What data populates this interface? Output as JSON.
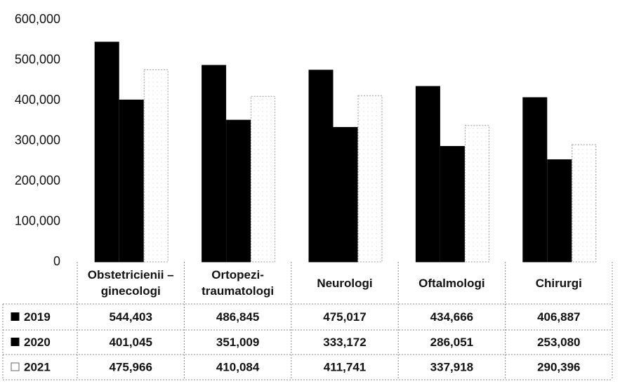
{
  "chart_data": {
    "type": "bar",
    "categories": [
      "Obstetricienii – ginecologi",
      "Ortopezi-traumatologi",
      "Neurologi",
      "Oftalmologi",
      "Chirurgi"
    ],
    "series": [
      {
        "name": "2019",
        "color": "#000000",
        "values": [
          544403,
          486845,
          475017,
          434666,
          406887
        ],
        "value_labels": [
          "544,403",
          "486,845",
          "475,017",
          "434,666",
          "406,887"
        ]
      },
      {
        "name": "2020",
        "color": "#000000",
        "values": [
          401045,
          351009,
          333172,
          286051,
          253080
        ],
        "value_labels": [
          "401,045",
          "351,009",
          "333,172",
          "286,051",
          "253,080"
        ]
      },
      {
        "name": "2021",
        "color": "#ffffff",
        "values": [
          475966,
          410084,
          411741,
          337918,
          290396
        ],
        "value_labels": [
          "475,966",
          "410,084",
          "411,741",
          "337,918",
          "290,396"
        ]
      }
    ],
    "ylim": [
      0,
      600000
    ],
    "yticks": [
      0,
      {
        "value": 100000,
        "label": "100,000"
      },
      {
        "value": 200000,
        "label": "200,000"
      },
      {
        "value": 300000,
        "label": "300,000"
      },
      {
        "value": 400000,
        "label": "400,000"
      },
      {
        "value": 500000,
        "label": "500,000"
      },
      {
        "value": 600000,
        "label": "600,000"
      }
    ],
    "grid": false
  }
}
